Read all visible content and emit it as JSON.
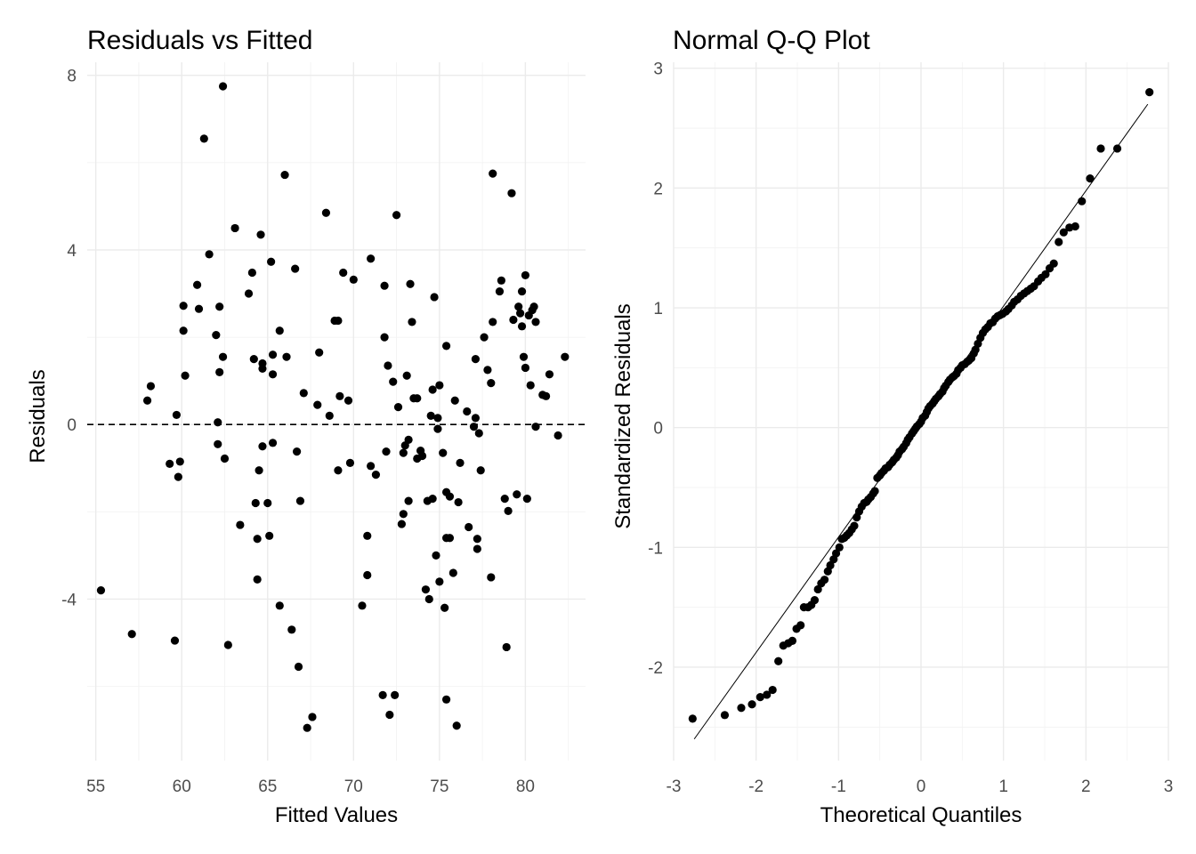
{
  "chart_data": [
    {
      "id": "residuals",
      "type": "scatter",
      "title": "Residuals vs Fitted",
      "xlabel": "Fitted Values",
      "ylabel": "Residuals",
      "xlim": [
        54.5,
        83.5
      ],
      "ylim": [
        -7.7,
        8.3
      ],
      "x_ticks": [
        55,
        60,
        65,
        70,
        75,
        80
      ],
      "y_ticks": [
        -4,
        0,
        4,
        8
      ],
      "grid": true,
      "reference_line": {
        "type": "horizontal",
        "y": 0,
        "style": "dashed"
      },
      "points": [
        [
          55.3,
          -3.8
        ],
        [
          57.1,
          -4.8
        ],
        [
          58.0,
          0.55
        ],
        [
          58.2,
          0.88
        ],
        [
          59.3,
          -0.9
        ],
        [
          59.6,
          -4.95
        ],
        [
          59.7,
          0.22
        ],
        [
          59.8,
          -1.2
        ],
        [
          59.9,
          -0.85
        ],
        [
          60.1,
          2.15
        ],
        [
          60.1,
          2.72
        ],
        [
          60.2,
          1.12
        ],
        [
          60.9,
          3.2
        ],
        [
          61.0,
          2.65
        ],
        [
          61.3,
          6.55
        ],
        [
          61.6,
          3.9
        ],
        [
          62.0,
          2.05
        ],
        [
          62.1,
          0.05
        ],
        [
          62.1,
          -0.45
        ],
        [
          62.2,
          1.2
        ],
        [
          62.2,
          2.7
        ],
        [
          62.4,
          7.75
        ],
        [
          62.4,
          1.55
        ],
        [
          62.5,
          -0.78
        ],
        [
          62.7,
          -5.05
        ],
        [
          63.1,
          4.5
        ],
        [
          63.4,
          -2.3
        ],
        [
          63.9,
          3.0
        ],
        [
          64.1,
          3.48
        ],
        [
          64.2,
          1.5
        ],
        [
          64.3,
          -1.8
        ],
        [
          64.4,
          -2.62
        ],
        [
          64.4,
          -3.55
        ],
        [
          64.5,
          -1.05
        ],
        [
          64.6,
          4.35
        ],
        [
          64.7,
          1.4
        ],
        [
          64.7,
          1.28
        ],
        [
          64.7,
          -0.5
        ],
        [
          65.0,
          -1.8
        ],
        [
          65.1,
          -2.55
        ],
        [
          65.2,
          3.73
        ],
        [
          65.3,
          1.6
        ],
        [
          65.3,
          -0.42
        ],
        [
          65.3,
          1.15
        ],
        [
          65.7,
          2.15
        ],
        [
          65.7,
          -4.15
        ],
        [
          66.0,
          5.72
        ],
        [
          66.1,
          1.55
        ],
        [
          66.4,
          -4.7
        ],
        [
          66.6,
          3.57
        ],
        [
          66.7,
          -0.62
        ],
        [
          66.8,
          -5.55
        ],
        [
          66.9,
          -1.75
        ],
        [
          67.1,
          0.72
        ],
        [
          67.3,
          -6.95
        ],
        [
          67.6,
          -6.7
        ],
        [
          67.9,
          0.45
        ],
        [
          68.0,
          1.65
        ],
        [
          68.4,
          4.85
        ],
        [
          68.6,
          0.2
        ],
        [
          68.9,
          2.38
        ],
        [
          69.1,
          2.38
        ],
        [
          69.1,
          -1.05
        ],
        [
          69.2,
          0.65
        ],
        [
          69.4,
          3.48
        ],
        [
          69.7,
          0.55
        ],
        [
          69.8,
          -0.88
        ],
        [
          70.0,
          3.32
        ],
        [
          70.5,
          -4.15
        ],
        [
          70.8,
          -2.55
        ],
        [
          70.8,
          -3.45
        ],
        [
          71.0,
          3.8
        ],
        [
          71.0,
          -0.95
        ],
        [
          71.3,
          -1.15
        ],
        [
          71.7,
          -6.2
        ],
        [
          71.8,
          3.18
        ],
        [
          71.8,
          2.0
        ],
        [
          71.9,
          -0.62
        ],
        [
          72.0,
          1.35
        ],
        [
          72.1,
          -6.65
        ],
        [
          72.3,
          0.98
        ],
        [
          72.4,
          -6.2
        ],
        [
          72.5,
          4.8
        ],
        [
          72.6,
          0.4
        ],
        [
          72.8,
          -2.28
        ],
        [
          72.9,
          -0.65
        ],
        [
          72.9,
          -2.05
        ],
        [
          73.0,
          -0.48
        ],
        [
          73.1,
          1.12
        ],
        [
          73.2,
          -1.75
        ],
        [
          73.2,
          -0.35
        ],
        [
          73.3,
          3.22
        ],
        [
          73.4,
          2.35
        ],
        [
          73.5,
          0.6
        ],
        [
          73.7,
          0.6
        ],
        [
          73.7,
          -0.78
        ],
        [
          73.9,
          -0.6
        ],
        [
          74.0,
          -0.72
        ],
        [
          74.2,
          -3.78
        ],
        [
          74.3,
          -1.75
        ],
        [
          74.4,
          -4.0
        ],
        [
          74.5,
          0.2
        ],
        [
          74.6,
          -1.7
        ],
        [
          74.6,
          0.8
        ],
        [
          74.7,
          2.92
        ],
        [
          74.8,
          -3.0
        ],
        [
          74.9,
          0.15
        ],
        [
          74.9,
          -0.1
        ],
        [
          75.0,
          0.9
        ],
        [
          75.0,
          -3.6
        ],
        [
          75.2,
          -0.65
        ],
        [
          75.3,
          -4.2
        ],
        [
          75.4,
          -1.55
        ],
        [
          75.4,
          -6.3
        ],
        [
          75.4,
          1.8
        ],
        [
          75.4,
          -2.6
        ],
        [
          75.6,
          -2.6
        ],
        [
          75.6,
          -1.65
        ],
        [
          75.8,
          -3.4
        ],
        [
          75.9,
          0.55
        ],
        [
          76.0,
          -6.9
        ],
        [
          76.1,
          -1.78
        ],
        [
          76.2,
          -0.88
        ],
        [
          76.6,
          0.3
        ],
        [
          76.7,
          -2.35
        ],
        [
          77.0,
          -0.05
        ],
        [
          77.1,
          1.5
        ],
        [
          77.1,
          0.15
        ],
        [
          77.2,
          -2.62
        ],
        [
          77.2,
          -2.85
        ],
        [
          77.3,
          -0.2
        ],
        [
          77.4,
          -1.05
        ],
        [
          77.6,
          2.0
        ],
        [
          77.8,
          1.25
        ],
        [
          78.0,
          -3.5
        ],
        [
          78.0,
          0.95
        ],
        [
          78.1,
          5.75
        ],
        [
          78.1,
          2.35
        ],
        [
          78.5,
          3.05
        ],
        [
          78.6,
          3.3
        ],
        [
          78.8,
          -1.7
        ],
        [
          78.9,
          -5.1
        ],
        [
          79.0,
          -1.98
        ],
        [
          79.2,
          5.3
        ],
        [
          79.3,
          2.4
        ],
        [
          79.5,
          -1.6
        ],
        [
          79.6,
          2.7
        ],
        [
          79.7,
          2.55
        ],
        [
          79.8,
          3.05
        ],
        [
          79.8,
          2.25
        ],
        [
          79.9,
          1.55
        ],
        [
          80.0,
          1.3
        ],
        [
          80.0,
          3.42
        ],
        [
          80.1,
          -1.7
        ],
        [
          80.2,
          2.5
        ],
        [
          80.3,
          0.9
        ],
        [
          80.4,
          2.62
        ],
        [
          80.5,
          2.7
        ],
        [
          80.6,
          2.35
        ],
        [
          80.6,
          -0.05
        ],
        [
          81.0,
          0.68
        ],
        [
          81.2,
          0.65
        ],
        [
          81.4,
          1.15
        ],
        [
          81.9,
          -0.25
        ],
        [
          82.3,
          1.55
        ]
      ]
    },
    {
      "id": "qq",
      "type": "scatter",
      "title": "Normal Q-Q Plot",
      "xlabel": "Theoretical Quantiles",
      "ylabel": "Standardized Residuals",
      "xlim": [
        -3.0,
        3.0
      ],
      "ylim": [
        -2.78,
        3.05
      ],
      "x_ticks": [
        -3,
        -2,
        -1,
        0,
        1,
        2,
        3
      ],
      "y_ticks": [
        -2,
        -1,
        0,
        1,
        2,
        3
      ],
      "grid": true,
      "reference_line": {
        "type": "segment",
        "from": [
          -2.75,
          -2.6
        ],
        "to": [
          2.75,
          2.7
        ],
        "style": "solid"
      },
      "points": [
        [
          -2.77,
          -2.43
        ],
        [
          -2.38,
          -2.4
        ],
        [
          -2.18,
          -2.34
        ],
        [
          -2.05,
          -2.31
        ],
        [
          -1.95,
          -2.25
        ],
        [
          -1.87,
          -2.23
        ],
        [
          -1.8,
          -2.19
        ],
        [
          -1.73,
          -1.95
        ],
        [
          -1.67,
          -1.82
        ],
        [
          -1.61,
          -1.8
        ],
        [
          -1.56,
          -1.78
        ],
        [
          -1.51,
          -1.68
        ],
        [
          -1.46,
          -1.65
        ],
        [
          -1.42,
          -1.5
        ],
        [
          -1.37,
          -1.5
        ],
        [
          -1.33,
          -1.48
        ],
        [
          -1.29,
          -1.44
        ],
        [
          -1.25,
          -1.35
        ],
        [
          -1.21,
          -1.3
        ],
        [
          -1.17,
          -1.27
        ],
        [
          -1.13,
          -1.2
        ],
        [
          -1.1,
          -1.15
        ],
        [
          -1.06,
          -1.1
        ],
        [
          -1.03,
          -1.05
        ],
        [
          -0.99,
          -1.0
        ],
        [
          -0.96,
          -0.93
        ],
        [
          -0.93,
          -0.92
        ],
        [
          -0.9,
          -0.9
        ],
        [
          -0.87,
          -0.88
        ],
        [
          -0.84,
          -0.85
        ],
        [
          -0.81,
          -0.82
        ],
        [
          -0.78,
          -0.75
        ],
        [
          -0.75,
          -0.7
        ],
        [
          -0.72,
          -0.66
        ],
        [
          -0.69,
          -0.63
        ],
        [
          -0.66,
          -0.62
        ],
        [
          -0.64,
          -0.6
        ],
        [
          -0.61,
          -0.58
        ],
        [
          -0.58,
          -0.55
        ],
        [
          -0.56,
          -0.53
        ],
        [
          -0.53,
          -0.42
        ],
        [
          -0.5,
          -0.4
        ],
        [
          -0.48,
          -0.38
        ],
        [
          -0.45,
          -0.36
        ],
        [
          -0.43,
          -0.34
        ],
        [
          -0.4,
          -0.33
        ],
        [
          -0.38,
          -0.31
        ],
        [
          -0.35,
          -0.29
        ],
        [
          -0.33,
          -0.27
        ],
        [
          -0.3,
          -0.25
        ],
        [
          -0.28,
          -0.23
        ],
        [
          -0.26,
          -0.2
        ],
        [
          -0.23,
          -0.18
        ],
        [
          -0.21,
          -0.16
        ],
        [
          -0.18,
          -0.13
        ],
        [
          -0.16,
          -0.1
        ],
        [
          -0.14,
          -0.08
        ],
        [
          -0.11,
          -0.05
        ],
        [
          -0.09,
          -0.03
        ],
        [
          -0.07,
          -0.01
        ],
        [
          -0.05,
          0.01
        ],
        [
          -0.02,
          0.03
        ],
        [
          0.0,
          0.05
        ],
        [
          0.02,
          0.08
        ],
        [
          0.05,
          0.1
        ],
        [
          0.07,
          0.13
        ],
        [
          0.09,
          0.16
        ],
        [
          0.11,
          0.18
        ],
        [
          0.14,
          0.2
        ],
        [
          0.16,
          0.22
        ],
        [
          0.18,
          0.24
        ],
        [
          0.21,
          0.26
        ],
        [
          0.23,
          0.28
        ],
        [
          0.26,
          0.3
        ],
        [
          0.28,
          0.33
        ],
        [
          0.3,
          0.35
        ],
        [
          0.33,
          0.38
        ],
        [
          0.35,
          0.4
        ],
        [
          0.38,
          0.42
        ],
        [
          0.4,
          0.43
        ],
        [
          0.43,
          0.45
        ],
        [
          0.45,
          0.48
        ],
        [
          0.48,
          0.5
        ],
        [
          0.5,
          0.52
        ],
        [
          0.53,
          0.53
        ],
        [
          0.56,
          0.55
        ],
        [
          0.58,
          0.56
        ],
        [
          0.61,
          0.58
        ],
        [
          0.64,
          0.62
        ],
        [
          0.66,
          0.65
        ],
        [
          0.69,
          0.7
        ],
        [
          0.72,
          0.75
        ],
        [
          0.75,
          0.79
        ],
        [
          0.78,
          0.82
        ],
        [
          0.81,
          0.84
        ],
        [
          0.84,
          0.87
        ],
        [
          0.87,
          0.88
        ],
        [
          0.9,
          0.91
        ],
        [
          0.93,
          0.93
        ],
        [
          0.96,
          0.94
        ],
        [
          0.99,
          0.95
        ],
        [
          1.03,
          0.97
        ],
        [
          1.06,
          0.99
        ],
        [
          1.1,
          1.02
        ],
        [
          1.13,
          1.05
        ],
        [
          1.17,
          1.07
        ],
        [
          1.21,
          1.1
        ],
        [
          1.25,
          1.12
        ],
        [
          1.29,
          1.14
        ],
        [
          1.33,
          1.16
        ],
        [
          1.37,
          1.18
        ],
        [
          1.42,
          1.22
        ],
        [
          1.46,
          1.25
        ],
        [
          1.51,
          1.28
        ],
        [
          1.56,
          1.33
        ],
        [
          1.61,
          1.37
        ],
        [
          1.67,
          1.55
        ],
        [
          1.73,
          1.63
        ],
        [
          1.8,
          1.67
        ],
        [
          1.87,
          1.68
        ],
        [
          1.95,
          1.89
        ],
        [
          2.05,
          2.08
        ],
        [
          2.18,
          2.33
        ],
        [
          2.38,
          2.33
        ],
        [
          2.77,
          2.8
        ]
      ]
    }
  ]
}
